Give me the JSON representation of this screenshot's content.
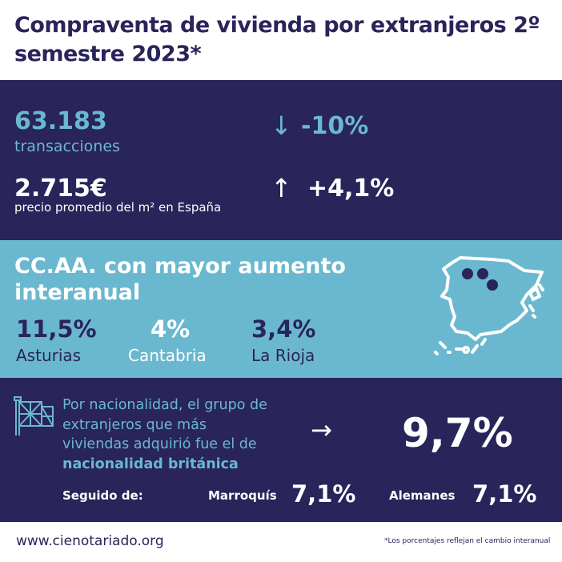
{
  "title": "Compraventa de vivienda por extranjeros 2º semestre 2023*",
  "stats": {
    "transactions_value": "63.183",
    "transactions_label": "transacciones",
    "transactions_change": "-10%",
    "price_value": "2.715€",
    "price_label": "precio promedio del m² en España",
    "price_change": "+4,1%"
  },
  "regions": {
    "heading": "CC.AA. con mayor aumento interanual",
    "items": [
      {
        "value": "11,5%",
        "name": "Asturias"
      },
      {
        "value": "4%",
        "name": "Cantabria"
      },
      {
        "value": "3,4%",
        "name": "La Rioja"
      }
    ]
  },
  "nationality": {
    "text_prefix": "Por nacionalidad, el grupo de extranjeros que más viviendas adquirió fue el de ",
    "text_bold": "nacionalidad británica",
    "main_value": "9,7%",
    "followed_label": "Seguido de:",
    "others": [
      {
        "name": "Marroquís",
        "value": "7,1%"
      },
      {
        "name": "Alemanes",
        "value": "7,1%"
      }
    ]
  },
  "footer": {
    "website": "www.cienotariado.org",
    "note": "*Los porcentajes reflejan el cambio interanual"
  },
  "colors": {
    "navy": "#29245a",
    "light_blue": "#6ab8cf"
  }
}
